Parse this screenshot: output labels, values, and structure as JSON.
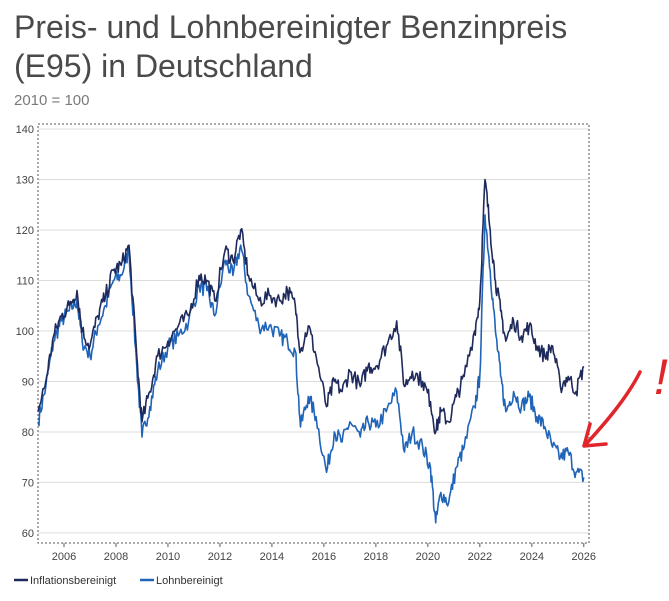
{
  "page": {
    "title": "Preis- und Lohnbereinigter Benzinpreis (E95) in Deutschland",
    "subtitle": "2010 = 100"
  },
  "colors": {
    "inflation": "#1f2a5c",
    "wage": "#1f64b8",
    "annotation": "#e0262b",
    "grid": "#dcdcdc"
  },
  "annotation": {
    "mark": "!"
  },
  "chart_data": {
    "type": "line",
    "title": "Preis- und Lohnbereinigter Benzinpreis (E95) in Deutschland",
    "subtitle": "2010 = 100",
    "xlim": [
      2005,
      2026.2
    ],
    "ylim": [
      58,
      141
    ],
    "x_ticks": [
      "2006",
      "2008",
      "2010",
      "2012",
      "2014",
      "2016",
      "2018",
      "2020",
      "2022",
      "2024",
      "2026"
    ],
    "y_ticks": [
      "60",
      "70",
      "80",
      "90",
      "100",
      "110",
      "120",
      "130",
      "140"
    ],
    "legend": [
      "Inflationsbereinigt",
      "Lohnbereinigt"
    ],
    "legend_position": "bottom-left",
    "series": [
      {
        "name": "Inflationsbereinigt",
        "color": "#1f2a5c",
        "x": [
          2005.0,
          2005.3,
          2005.6,
          2005.9,
          2006.2,
          2006.5,
          2006.7,
          2007.0,
          2007.3,
          2007.6,
          2007.9,
          2008.2,
          2008.5,
          2008.8,
          2009.0,
          2009.3,
          2009.6,
          2010.0,
          2010.4,
          2010.8,
          2011.2,
          2011.5,
          2011.8,
          2012.2,
          2012.5,
          2012.8,
          2013.1,
          2013.5,
          2013.9,
          2014.3,
          2014.6,
          2014.9,
          2015.1,
          2015.4,
          2015.7,
          2016.1,
          2016.4,
          2016.7,
          2017.0,
          2017.4,
          2017.7,
          2018.0,
          2018.4,
          2018.8,
          2019.1,
          2019.4,
          2019.8,
          2020.1,
          2020.3,
          2020.5,
          2020.8,
          2021.1,
          2021.4,
          2021.8,
          2022.0,
          2022.2,
          2022.4,
          2022.6,
          2022.8,
          2023.0,
          2023.3,
          2023.6,
          2023.9,
          2024.2,
          2024.5,
          2024.8,
          2025.1,
          2025.4,
          2025.7,
          2026.0
        ],
        "values": [
          84,
          90,
          99,
          103,
          105,
          108,
          100,
          97,
          103,
          107,
          112,
          113,
          117,
          95,
          82,
          88,
          95,
          98,
          101,
          103,
          111,
          110,
          106,
          116,
          114,
          120,
          111,
          106,
          107,
          106,
          108,
          105,
          96,
          101,
          95,
          85,
          90,
          88,
          92,
          89,
          93,
          93,
          97,
          102,
          89,
          92,
          90,
          86,
          80,
          84,
          82,
          87,
          91,
          100,
          106,
          130,
          120,
          110,
          104,
          98,
          102,
          99,
          101,
          97,
          95,
          97,
          89,
          91,
          88,
          93
        ]
      },
      {
        "name": "Lohnbereinigt",
        "color": "#1f64b8",
        "x": [
          2005.0,
          2005.3,
          2005.6,
          2005.9,
          2006.2,
          2006.5,
          2006.7,
          2007.0,
          2007.3,
          2007.6,
          2007.9,
          2008.2,
          2008.5,
          2008.8,
          2009.0,
          2009.3,
          2009.6,
          2010.0,
          2010.4,
          2010.8,
          2011.2,
          2011.5,
          2011.8,
          2012.2,
          2012.5,
          2012.8,
          2013.1,
          2013.5,
          2013.9,
          2014.3,
          2014.6,
          2014.9,
          2015.1,
          2015.4,
          2015.7,
          2016.1,
          2016.4,
          2016.7,
          2017.0,
          2017.4,
          2017.7,
          2018.0,
          2018.4,
          2018.8,
          2019.1,
          2019.4,
          2019.8,
          2020.1,
          2020.3,
          2020.5,
          2020.8,
          2021.1,
          2021.4,
          2021.8,
          2022.0,
          2022.2,
          2022.4,
          2022.6,
          2022.8,
          2023.0,
          2023.3,
          2023.6,
          2023.9,
          2024.2,
          2024.5,
          2024.8,
          2025.1,
          2025.4,
          2025.7,
          2026.0
        ],
        "values": [
          82,
          89,
          98,
          102,
          104,
          106,
          98,
          95,
          101,
          105,
          110,
          111,
          116,
          93,
          79,
          85,
          92,
          97,
          99,
          102,
          109,
          108,
          103,
          114,
          111,
          117,
          107,
          101,
          101,
          99,
          98,
          96,
          81,
          87,
          83,
          72,
          80,
          78,
          82,
          79,
          82,
          81,
          84,
          88,
          76,
          80,
          77,
          73,
          62,
          68,
          66,
          73,
          77,
          85,
          91,
          123,
          112,
          100,
          91,
          84,
          88,
          85,
          87,
          83,
          81,
          77,
          75,
          76,
          72,
          71
        ]
      }
    ]
  }
}
